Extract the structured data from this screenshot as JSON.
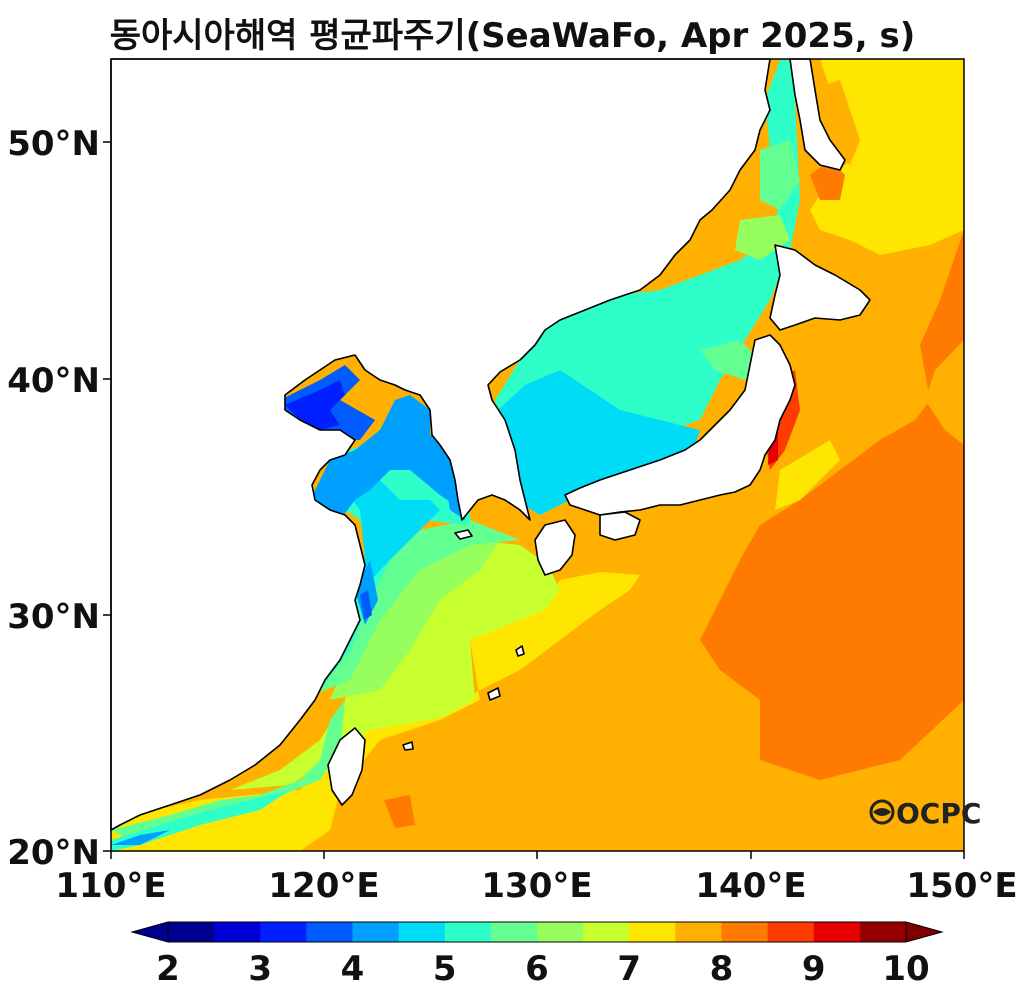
{
  "map": {
    "title": "동아시아해역 평균파주기(SeaWaFo, Apr 2025, s)",
    "lon_range": [
      110,
      150
    ],
    "lat_range": [
      20,
      53.5
    ],
    "lon_ticks": [
      "110°E",
      "120°E",
      "130°E",
      "140°E",
      "150°E"
    ],
    "lat_ticks": [
      "20°N",
      "30°N",
      "40°N",
      "50°N"
    ],
    "logo_text": "OCPC",
    "land_color": "#ffffff",
    "coastline_color": "#000000"
  },
  "colorbar": {
    "levels": [
      2,
      2.5,
      3,
      3.5,
      4,
      4.5,
      5,
      5.5,
      6,
      6.5,
      7,
      7.5,
      8,
      8.5,
      9,
      9.5,
      10
    ],
    "colors": [
      "#00008f",
      "#0000d6",
      "#0020ff",
      "#005cff",
      "#00a0ff",
      "#00dcf5",
      "#2effc8",
      "#64ff91",
      "#96ff5e",
      "#c8ff2e",
      "#ffe600",
      "#ffb000",
      "#ff7a00",
      "#ff3c00",
      "#e60000",
      "#960000"
    ],
    "under_color": "#00008f",
    "over_color": "#7f0000",
    "tick_labels": [
      "2",
      "3",
      "4",
      "5",
      "6",
      "7",
      "8",
      "9",
      "10"
    ]
  }
}
